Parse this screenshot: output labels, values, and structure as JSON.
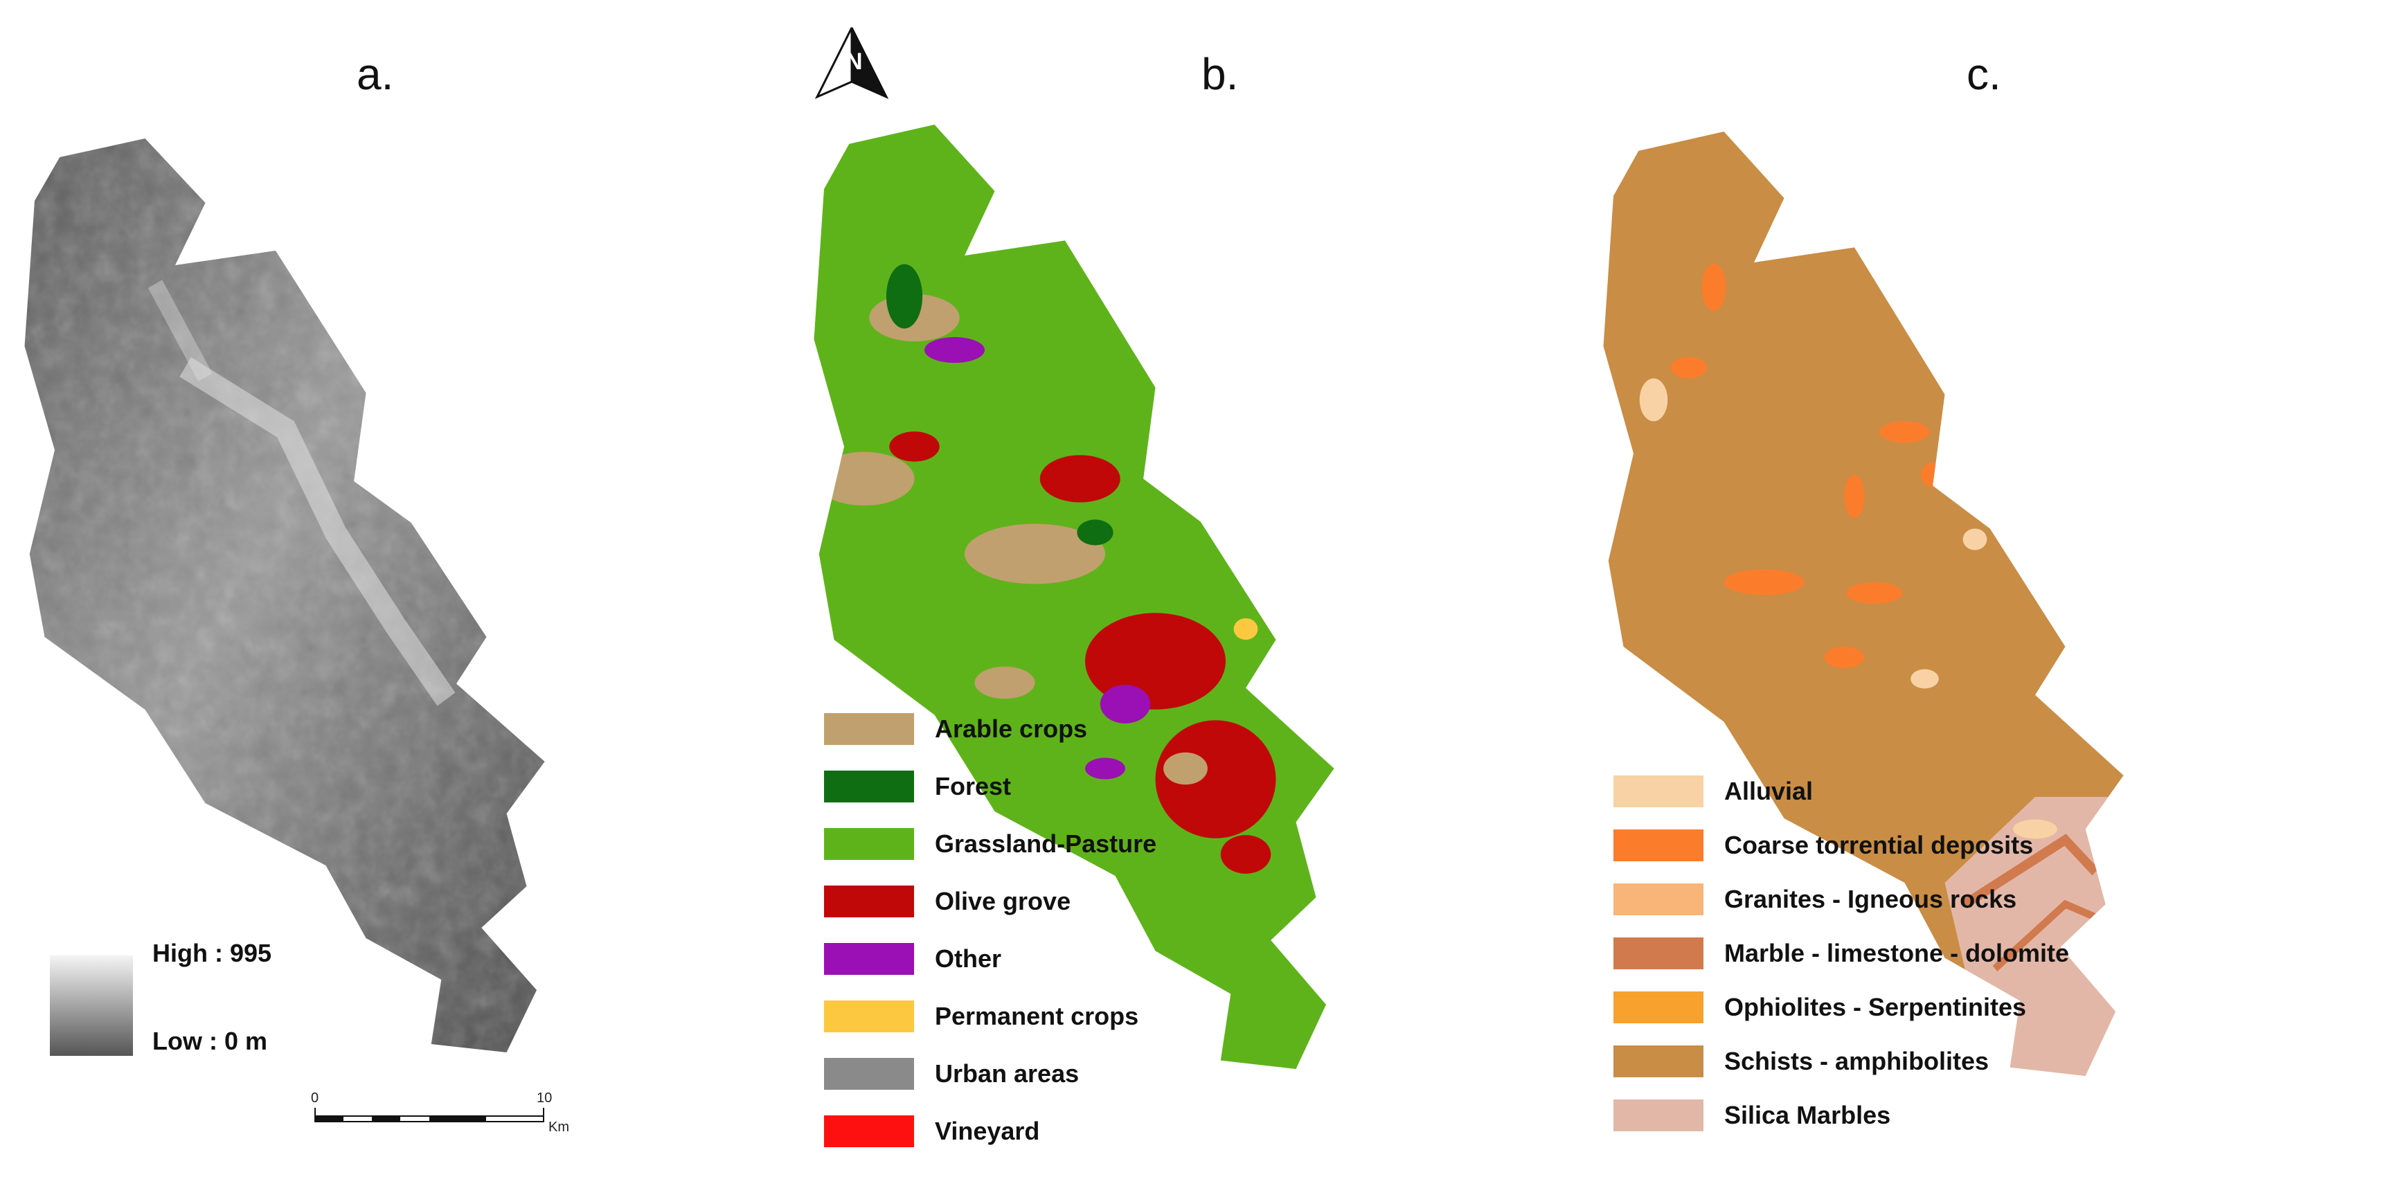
{
  "panels": [
    {
      "label": "a."
    },
    {
      "label": "b."
    },
    {
      "label": "c."
    }
  ],
  "elevation_legend": {
    "high": "High : 995",
    "low": "Low : 0 m",
    "colors": {
      "high": "#f4f4f4",
      "low": "#555555"
    }
  },
  "scale_bar": {
    "start": "0",
    "end": "10",
    "unit": "Km"
  },
  "north_arrow": {
    "icon": "north-arrow-icon",
    "letter": "N"
  },
  "land_use_legend": [
    {
      "label": "Arable crops",
      "color": "#c0a06f"
    },
    {
      "label": "Forest",
      "color": "#0f6e12"
    },
    {
      "label": "Grassland-Pasture",
      "color": "#5fb31a"
    },
    {
      "label": "Olive grove",
      "color": "#c00808"
    },
    {
      "label": "Other",
      "color": "#9a10b4"
    },
    {
      "label": "Permanent crops",
      "color": "#fcc840"
    },
    {
      "label": "Urban areas",
      "color": "#8a8a8a"
    },
    {
      "label": "Vineyard",
      "color": "#ff1010"
    }
  ],
  "geology_legend": [
    {
      "label": "Alluvial",
      "color": "#f8d2a4"
    },
    {
      "label": "Coarse torrential deposits",
      "color": "#fb7d2c"
    },
    {
      "label": "Granites - Igneous rocks",
      "color": "#f9b478"
    },
    {
      "label": "Marble - limestone - dolomite",
      "color": "#d17a4e"
    },
    {
      "label": "Ophiolites - Serpentinites",
      "color": "#f8a12d"
    },
    {
      "label": "Schists - amphibolites",
      "color": "#c98d45"
    },
    {
      "label": "Silica Marbles",
      "color": "#e3b7a8"
    }
  ]
}
